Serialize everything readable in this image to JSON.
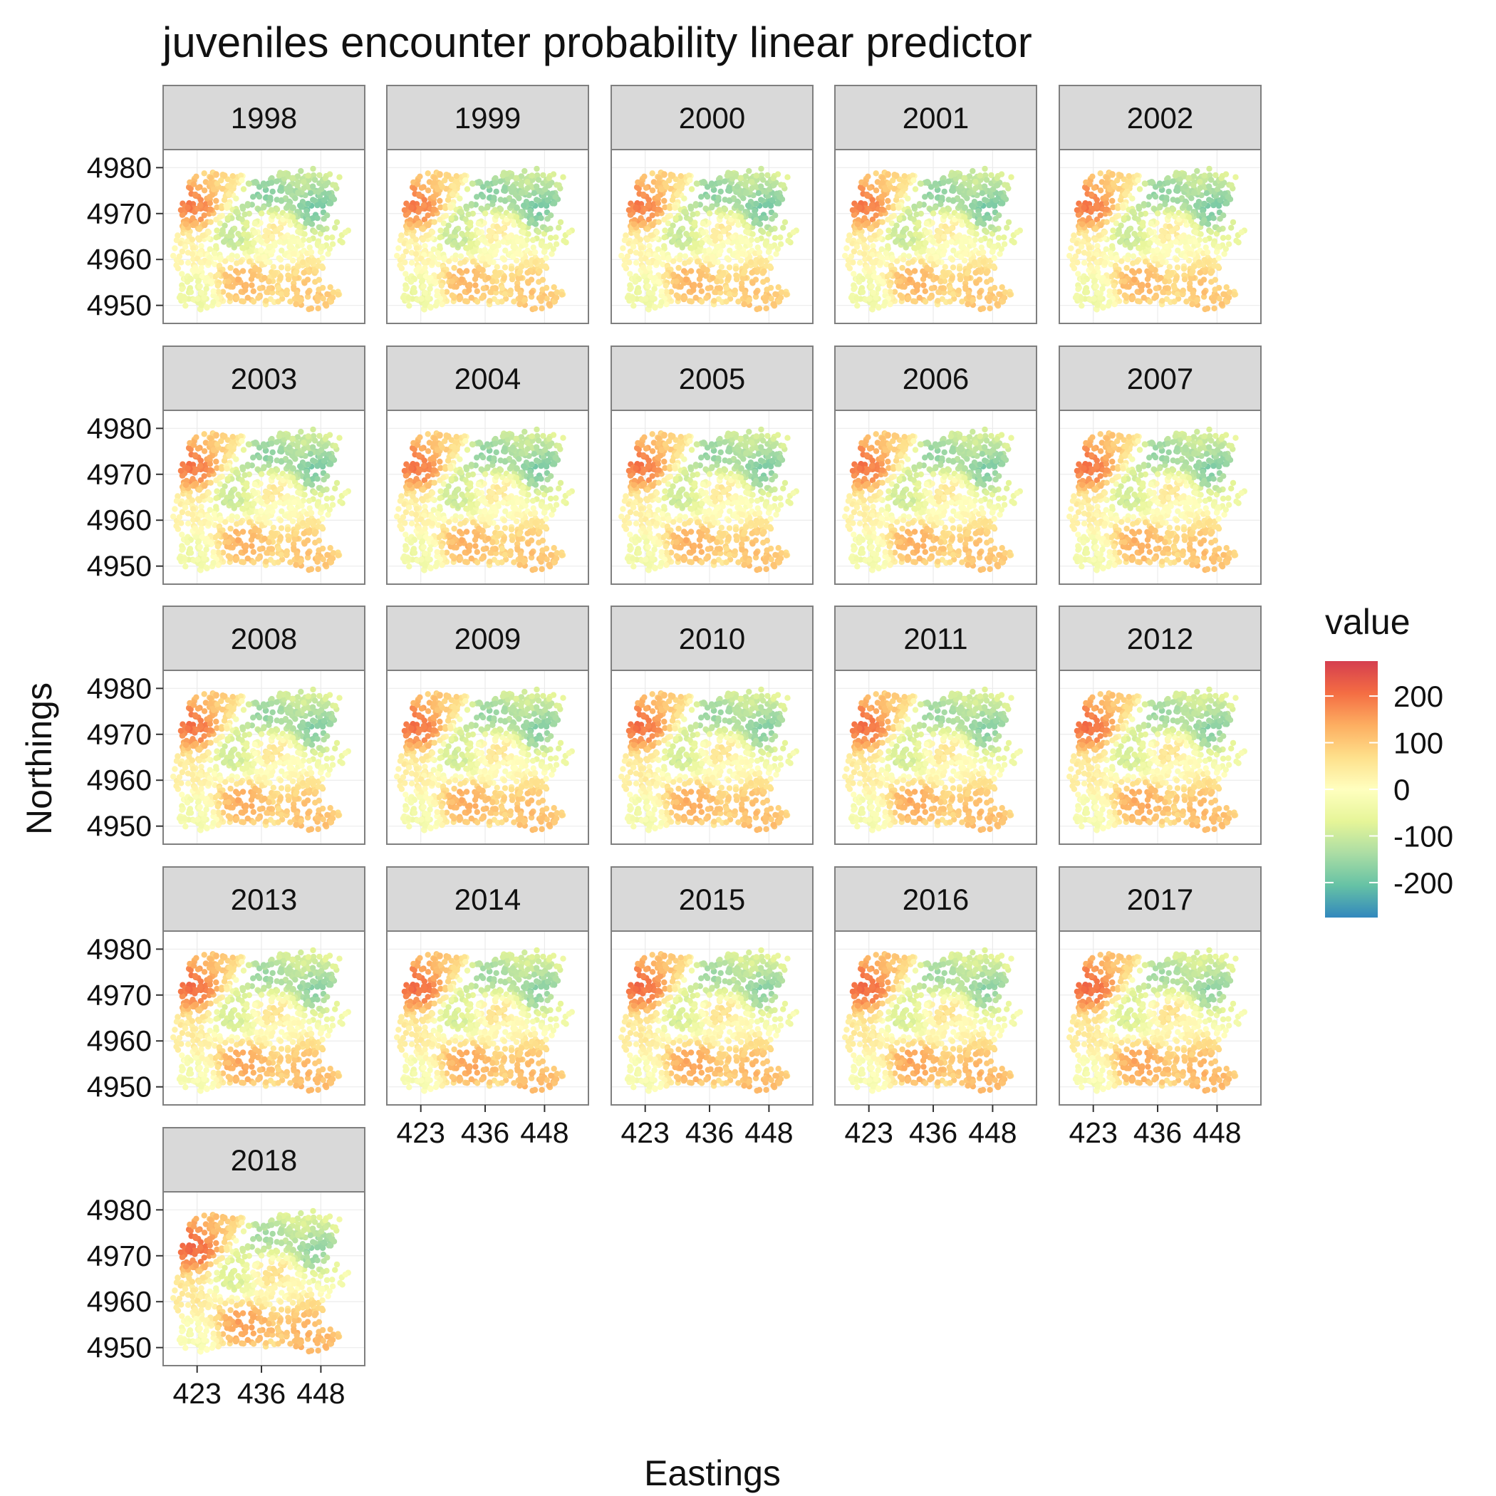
{
  "chart_data": {
    "type": "heatmap",
    "title": "juveniles encounter probability linear predictor",
    "xlabel": "Eastings",
    "ylabel": "Northings",
    "facets": [
      "1998",
      "1999",
      "2000",
      "2001",
      "2002",
      "2003",
      "2004",
      "2005",
      "2006",
      "2007",
      "2008",
      "2009",
      "2010",
      "2011",
      "2012",
      "2013",
      "2014",
      "2015",
      "2016",
      "2017",
      "2018"
    ],
    "ncol": 5,
    "x_ticks": [
      423,
      436,
      448
    ],
    "y_ticks": [
      4980,
      4970,
      4960,
      4950
    ],
    "x_tick_labels": [
      "423",
      "436",
      "448"
    ],
    "y_tick_labels": [
      "4980",
      "4970",
      "4960",
      "4950"
    ],
    "xlim": [
      417,
      456
    ],
    "ylim": [
      4947,
      4983
    ],
    "grid": true,
    "legend": {
      "title": "value",
      "position": "right",
      "range": [
        -275,
        275
      ],
      "breaks": [
        200,
        100,
        0,
        -100,
        -200
      ],
      "break_labels": [
        "200",
        "100",
        "0",
        "-100",
        "-200"
      ],
      "colors": [
        "#D53E4F",
        "#F46D43",
        "#FDAE61",
        "#FEE08B",
        "#FFFFBF",
        "#E6F598",
        "#ABDDA4",
        "#66C2A5",
        "#3288BD"
      ]
    },
    "hotspots": [
      {
        "x": 422,
        "y": 4972,
        "value": 230
      },
      {
        "x": 438,
        "y": 4966,
        "value": 150
      },
      {
        "x": 433,
        "y": 4956,
        "value": 160
      },
      {
        "x": 446,
        "y": 4952,
        "value": 130
      },
      {
        "x": 442,
        "y": 4958,
        "value": 120
      },
      {
        "x": 427,
        "y": 4978,
        "value": 110
      },
      {
        "x": 420,
        "y": 4962,
        "value": 40
      },
      {
        "x": 437,
        "y": 4973,
        "value": -190
      },
      {
        "x": 447,
        "y": 4971,
        "value": -210
      },
      {
        "x": 432,
        "y": 4965,
        "value": -130
      },
      {
        "x": 440,
        "y": 4962,
        "value": -90
      },
      {
        "x": 445,
        "y": 4978,
        "value": -100
      },
      {
        "x": 452,
        "y": 4966,
        "value": -40
      },
      {
        "x": 420,
        "y": 4952,
        "value": -40
      }
    ]
  }
}
